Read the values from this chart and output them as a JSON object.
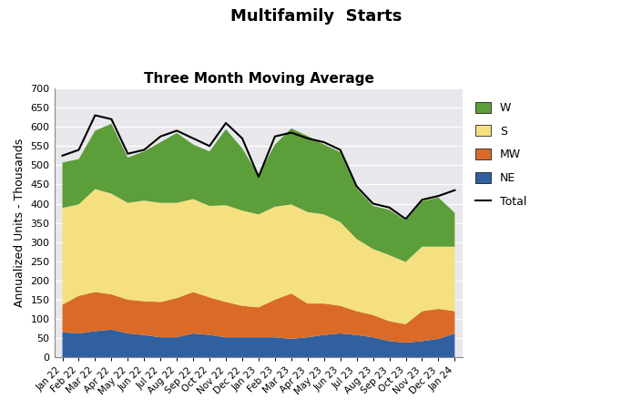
{
  "title": "Multifamily  Starts",
  "subtitle": "Three Month Moving Average",
  "ylabel": "Annualized Units - Thousands",
  "ylim": [
    0,
    700
  ],
  "labels": [
    "Jan 22",
    "Feb 22",
    "Mar 22",
    "Apr 22",
    "May 22",
    "Jun 22",
    "Jul 22",
    "Aug 22",
    "Sep 22",
    "Oct 22",
    "Nov 22",
    "Dec 22",
    "Jan 23",
    "Feb 23",
    "Mar 23",
    "Apr 23",
    "May 23",
    "Jun 23",
    "Jul 23",
    "Aug 23",
    "Sep 23",
    "Oct 23",
    "Nov 23",
    "Dec 23",
    "Jan 24"
  ],
  "NE": [
    65,
    62,
    68,
    72,
    62,
    58,
    52,
    52,
    62,
    58,
    52,
    52,
    52,
    52,
    48,
    52,
    58,
    62,
    58,
    52,
    42,
    38,
    42,
    48,
    62
  ],
  "MW": [
    72,
    98,
    102,
    92,
    88,
    88,
    92,
    102,
    108,
    98,
    92,
    82,
    78,
    98,
    118,
    88,
    82,
    72,
    62,
    58,
    52,
    48,
    78,
    78,
    58
  ],
  "S": [
    252,
    238,
    268,
    262,
    252,
    262,
    258,
    248,
    242,
    238,
    252,
    248,
    242,
    242,
    232,
    238,
    232,
    218,
    188,
    172,
    172,
    162,
    168,
    162,
    168
  ],
  "W": [
    118,
    118,
    152,
    182,
    118,
    128,
    158,
    182,
    142,
    142,
    198,
    162,
    102,
    162,
    198,
    198,
    182,
    182,
    132,
    112,
    118,
    108,
    118,
    128,
    88
  ],
  "total": [
    525,
    540,
    630,
    620,
    530,
    540,
    575,
    590,
    570,
    550,
    610,
    570,
    470,
    575,
    585,
    570,
    560,
    540,
    445,
    400,
    390,
    360,
    410,
    420,
    435
  ],
  "colors": {
    "NE": "#3060A0",
    "MW": "#D96B27",
    "S": "#F5E080",
    "W": "#5C9E3A"
  },
  "total_color": "#000000",
  "plot_bg": "#E8E8EC",
  "fig_bg": "#FFFFFF"
}
